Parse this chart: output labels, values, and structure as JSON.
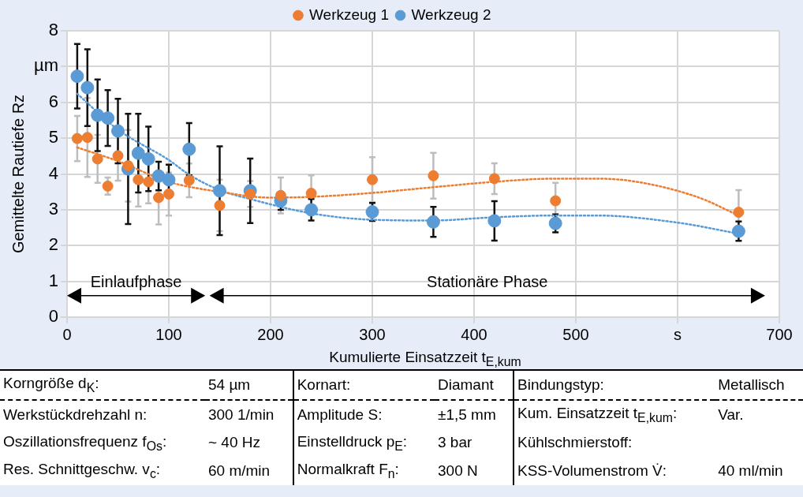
{
  "chart_data": {
    "type": "scatter",
    "xlabel": "Kumulierte Einsatzzeit t$_{E,kum}$",
    "ylabel": "Gemittelte Rautiefe Rz",
    "xlim": [
      0,
      700
    ],
    "xticks": [
      0,
      100,
      200,
      300,
      400,
      500,
      {
        "value": 600,
        "label": "s"
      },
      700
    ],
    "ylim": [
      0,
      8
    ],
    "yticks": [
      0,
      1,
      2,
      3,
      4,
      5,
      6,
      {
        "value": 7,
        "label": "µm"
      },
      8
    ],
    "grid": true,
    "legend": "top",
    "marker": "circle",
    "series": [
      {
        "name": "Werkzeug 1",
        "color": "#ed7d31",
        "x": [
          10,
          20,
          30,
          40,
          50,
          60,
          70,
          80,
          90,
          100,
          120,
          150,
          180,
          210,
          240,
          300,
          360,
          420,
          480,
          660
        ],
        "values": [
          4.99,
          5.02,
          4.42,
          3.66,
          4.51,
          4.23,
          3.84,
          3.78,
          3.34,
          3.44,
          3.82,
          3.12,
          3.44,
          3.4,
          3.46,
          3.84,
          3.95,
          3.87,
          3.25,
          2.93
        ],
        "errors": [
          0.63,
          1.1,
          0.67,
          0.24,
          0.7,
          1.0,
          0.75,
          0.6,
          0.75,
          0.6,
          0.47,
          0.72,
          0.36,
          0.5,
          0.5,
          0.63,
          0.64,
          0.43,
          0.5,
          0.62
        ]
      },
      {
        "name": "Werkzeug 2",
        "color": "#5b9bd5",
        "x": [
          10,
          20,
          30,
          40,
          50,
          60,
          70,
          80,
          90,
          100,
          120,
          150,
          180,
          210,
          240,
          300,
          360,
          420,
          480,
          660
        ],
        "values": [
          6.73,
          6.41,
          5.64,
          5.56,
          5.2,
          4.14,
          4.58,
          4.42,
          3.94,
          3.84,
          4.69,
          3.53,
          3.53,
          3.25,
          3.0,
          2.94,
          2.66,
          2.69,
          2.62,
          2.4
        ],
        "errors": [
          0.9,
          1.07,
          1.0,
          0.78,
          0.9,
          1.54,
          1.1,
          0.9,
          0.4,
          0.42,
          0.73,
          1.24,
          0.9,
          0.25,
          0.3,
          0.25,
          0.42,
          0.55,
          0.25,
          0.27
        ]
      },
      {
        "type": "line",
        "color": "#ed7d31",
        "marker": "none",
        "line_style": "dotted",
        "x": [
          10,
          50,
          100,
          150,
          200,
          240,
          300,
          360,
          420,
          480,
          520,
          560,
          620,
          660
        ],
        "values": [
          4.74,
          4.36,
          3.78,
          3.5,
          3.34,
          3.36,
          3.47,
          3.63,
          3.78,
          3.87,
          3.87,
          3.78,
          3.35,
          2.84
        ]
      },
      {
        "type": "line",
        "color": "#5b9bd5",
        "marker": "none",
        "line_style": "dotted",
        "x": [
          10,
          50,
          100,
          120,
          150,
          180,
          240,
          300,
          360,
          420,
          480,
          520,
          600,
          660
        ],
        "values": [
          6.24,
          5.24,
          4.39,
          3.98,
          3.55,
          3.3,
          2.9,
          2.72,
          2.7,
          2.79,
          2.84,
          2.84,
          2.64,
          2.33
        ]
      }
    ],
    "annotations": [
      "Einlaufphase",
      "Stationäre Phase",
      "Korngröße d$_{K}$: 54 µm",
      "Kornart: Diamant",
      "Bindungstyp: Metallisch",
      "Werkstückdrehzahl n: 300 1/min",
      "Amplitude S: ±1,5 mm",
      "Kum. Einsatzzeit t$_{E,kum}$: Var.",
      "Oszillationsfrequenz f$_{Os}$: ~ 40 Hz",
      "Einstelldruck p$_{E}$: 3 bar",
      "Kühlschmierstoff:",
      "Res. Schnittgeschw. v$_{c}$: 60 m/min",
      "Normalkraft F$_{n}$: 300 N",
      "KSS-Volumenstrom V̇: 40 ml/min"
    ]
  }
}
